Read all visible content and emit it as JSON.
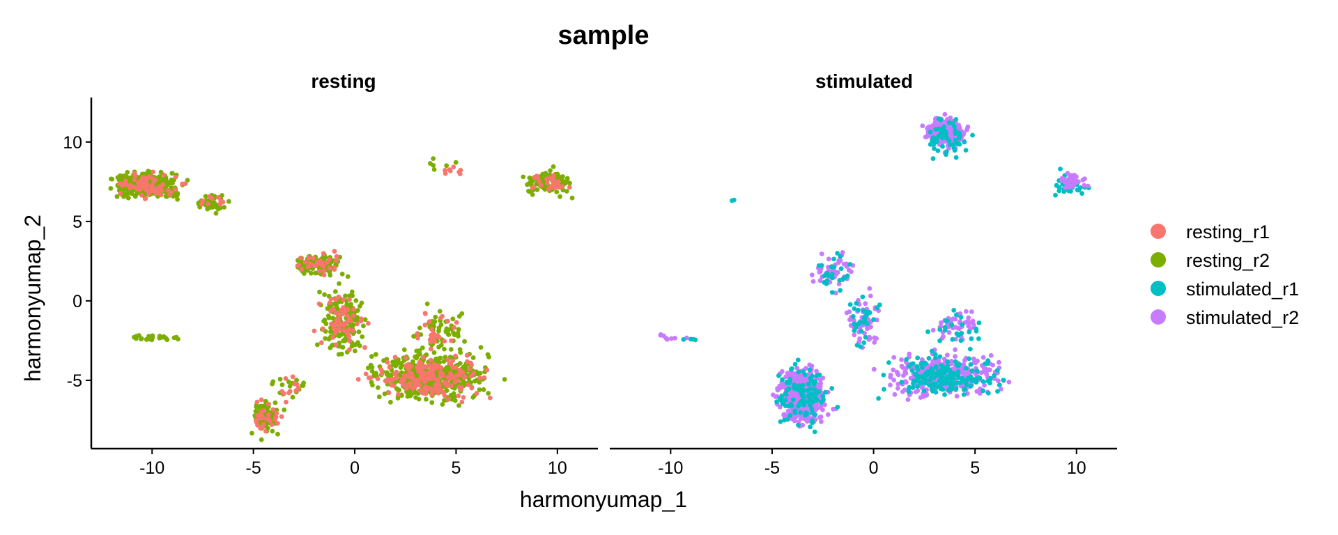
{
  "chart_data": {
    "type": "scatter",
    "title": "sample",
    "xlabel": "harmonyumap_1",
    "ylabel": "harmonyumap_2",
    "xlim": [
      -13,
      12
    ],
    "ylim": [
      -9.3,
      12.8
    ],
    "xticks": [
      -10,
      -5,
      0,
      5,
      10
    ],
    "yticks": [
      -5,
      0,
      5,
      10
    ],
    "legend_position": "right",
    "facets": [
      {
        "label": "resting",
        "clusters": [
          {
            "series": "resting_r2",
            "cx": -10.3,
            "cy": 7.3,
            "rx": 1.4,
            "ry": 0.7,
            "n": 420
          },
          {
            "series": "resting_r1",
            "cx": -10.3,
            "cy": 7.3,
            "rx": 1.4,
            "ry": 0.7,
            "n": 70
          },
          {
            "series": "resting_r2",
            "cx": -7.0,
            "cy": 6.2,
            "rx": 0.7,
            "ry": 0.45,
            "n": 45
          },
          {
            "series": "resting_r1",
            "cx": -7.0,
            "cy": 6.2,
            "rx": 0.7,
            "ry": 0.45,
            "n": 10
          },
          {
            "series": "resting_r2",
            "cx": -9.8,
            "cy": -2.3,
            "rx": 1.1,
            "ry": 0.2,
            "n": 25
          },
          {
            "series": "resting_r2",
            "cx": 9.5,
            "cy": 7.4,
            "rx": 1.0,
            "ry": 0.7,
            "n": 110
          },
          {
            "series": "resting_r1",
            "cx": 9.5,
            "cy": 7.4,
            "rx": 1.0,
            "ry": 0.7,
            "n": 25
          },
          {
            "series": "resting_r2",
            "cx": 4.3,
            "cy": 8.6,
            "rx": 0.8,
            "ry": 0.4,
            "n": 6
          },
          {
            "series": "resting_r1",
            "cx": 4.7,
            "cy": 8.3,
            "rx": 0.6,
            "ry": 0.3,
            "n": 8
          },
          {
            "series": "resting_r2",
            "cx": -1.8,
            "cy": 2.3,
            "rx": 1.0,
            "ry": 0.6,
            "n": 110
          },
          {
            "series": "resting_r1",
            "cx": -1.8,
            "cy": 2.3,
            "rx": 1.0,
            "ry": 0.6,
            "n": 35
          },
          {
            "series": "resting_r2",
            "cx": -0.6,
            "cy": -1.2,
            "rx": 1.0,
            "ry": 1.9,
            "n": 170
          },
          {
            "series": "resting_r1",
            "cx": -0.6,
            "cy": -1.2,
            "rx": 1.0,
            "ry": 1.9,
            "n": 60
          },
          {
            "series": "resting_r2",
            "cx": 3.8,
            "cy": -4.8,
            "rx": 2.6,
            "ry": 1.3,
            "n": 480
          },
          {
            "series": "resting_r1",
            "cx": 3.8,
            "cy": -4.8,
            "rx": 2.6,
            "ry": 1.3,
            "n": 190
          },
          {
            "series": "resting_r2",
            "cx": 4.2,
            "cy": -1.8,
            "rx": 1.1,
            "ry": 1.1,
            "n": 60
          },
          {
            "series": "resting_r1",
            "cx": 4.2,
            "cy": -1.8,
            "rx": 1.1,
            "ry": 1.1,
            "n": 25
          },
          {
            "series": "resting_r2",
            "cx": -4.4,
            "cy": -7.3,
            "rx": 0.6,
            "ry": 1.0,
            "n": 90
          },
          {
            "series": "resting_r1",
            "cx": -4.4,
            "cy": -7.3,
            "rx": 0.6,
            "ry": 1.0,
            "n": 30
          },
          {
            "series": "resting_r2",
            "cx": -3.2,
            "cy": -5.5,
            "rx": 0.9,
            "ry": 0.9,
            "n": 18
          },
          {
            "series": "resting_r1",
            "cx": -3.2,
            "cy": -5.5,
            "rx": 0.9,
            "ry": 0.9,
            "n": 12
          }
        ]
      },
      {
        "label": "stimulated",
        "clusters": [
          {
            "series": "stimulated_r2",
            "cx": 3.6,
            "cy": 10.6,
            "rx": 0.9,
            "ry": 0.8,
            "n": 270
          },
          {
            "series": "stimulated_r1",
            "cx": 3.6,
            "cy": 10.3,
            "rx": 1.0,
            "ry": 1.1,
            "n": 55
          },
          {
            "series": "stimulated_r1",
            "cx": 9.6,
            "cy": 7.3,
            "rx": 0.8,
            "ry": 0.7,
            "n": 40
          },
          {
            "series": "stimulated_r2",
            "cx": 9.8,
            "cy": 7.6,
            "rx": 0.7,
            "ry": 0.5,
            "n": 30
          },
          {
            "series": "stimulated_r1",
            "cx": -6.8,
            "cy": 6.3,
            "rx": 0.4,
            "ry": 0.4,
            "n": 2
          },
          {
            "series": "stimulated_r2",
            "cx": -9.8,
            "cy": -2.3,
            "rx": 1.0,
            "ry": 0.2,
            "n": 8
          },
          {
            "series": "stimulated_r1",
            "cx": -9.0,
            "cy": -2.4,
            "rx": 0.3,
            "ry": 0.15,
            "n": 4
          },
          {
            "series": "stimulated_r2",
            "cx": -1.9,
            "cy": 1.8,
            "rx": 1.0,
            "ry": 1.1,
            "n": 45
          },
          {
            "series": "stimulated_r1",
            "cx": -1.9,
            "cy": 1.8,
            "rx": 1.0,
            "ry": 1.1,
            "n": 25
          },
          {
            "series": "stimulated_r2",
            "cx": -0.5,
            "cy": -1.3,
            "rx": 0.8,
            "ry": 1.5,
            "n": 55
          },
          {
            "series": "stimulated_r1",
            "cx": -0.5,
            "cy": -1.3,
            "rx": 0.8,
            "ry": 1.5,
            "n": 30
          },
          {
            "series": "stimulated_r2",
            "cx": 3.5,
            "cy": -4.7,
            "rx": 2.5,
            "ry": 1.2,
            "n": 330
          },
          {
            "series": "stimulated_r1",
            "cx": 3.5,
            "cy": -4.7,
            "rx": 2.5,
            "ry": 1.2,
            "n": 170
          },
          {
            "series": "stimulated_r2",
            "cx": 4.2,
            "cy": -1.6,
            "rx": 1.0,
            "ry": 0.9,
            "n": 45
          },
          {
            "series": "stimulated_r1",
            "cx": 4.2,
            "cy": -1.6,
            "rx": 1.0,
            "ry": 0.9,
            "n": 25
          },
          {
            "series": "stimulated_r2",
            "cx": -3.5,
            "cy": -6.0,
            "rx": 1.1,
            "ry": 1.6,
            "n": 430
          },
          {
            "series": "stimulated_r1",
            "cx": -3.5,
            "cy": -6.0,
            "rx": 1.2,
            "ry": 1.8,
            "n": 110
          }
        ]
      }
    ],
    "series": [
      {
        "name": "resting_r1",
        "color": "#F8766D"
      },
      {
        "name": "resting_r2",
        "color": "#7CAE00"
      },
      {
        "name": "stimulated_r1",
        "color": "#00BFC4"
      },
      {
        "name": "stimulated_r2",
        "color": "#C77CFF"
      }
    ]
  }
}
